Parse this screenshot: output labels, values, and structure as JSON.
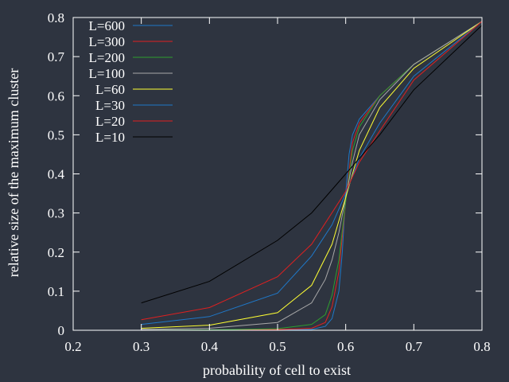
{
  "chart_data": {
    "type": "line",
    "title": "",
    "xlabel": "probability of cell to exist",
    "ylabel": "relative size of the maximum cluster",
    "xlim": [
      0.2,
      0.8
    ],
    "ylim": [
      0,
      0.8
    ],
    "xticks": [
      "0.2",
      "0.3",
      "0.4",
      "0.5",
      "0.6",
      "0.7",
      "0.8"
    ],
    "yticks": [
      "0",
      "0.1",
      "0.2",
      "0.3",
      "0.4",
      "0.5",
      "0.6",
      "0.7",
      "0.8"
    ],
    "grid": false,
    "legend_position": "top-left",
    "background": "#2e3440",
    "axis_color": "#ffffff",
    "series": [
      {
        "name": "L=600",
        "color": "#1f78c8",
        "x": [
          0.3,
          0.4,
          0.5,
          0.55,
          0.57,
          0.58,
          0.59,
          0.595,
          0.6,
          0.605,
          0.61,
          0.62,
          0.65,
          0.7,
          0.8
        ],
        "y": [
          0.0,
          0.0,
          0.0,
          0.002,
          0.01,
          0.03,
          0.1,
          0.2,
          0.35,
          0.45,
          0.5,
          0.54,
          0.6,
          0.68,
          0.79
        ]
      },
      {
        "name": "L=300",
        "color": "#e02020",
        "x": [
          0.3,
          0.4,
          0.5,
          0.55,
          0.57,
          0.58,
          0.59,
          0.6,
          0.61,
          0.62,
          0.65,
          0.7,
          0.8
        ],
        "y": [
          0.0,
          0.0,
          0.002,
          0.005,
          0.02,
          0.06,
          0.15,
          0.33,
          0.48,
          0.53,
          0.6,
          0.68,
          0.79
        ]
      },
      {
        "name": "L=200",
        "color": "#2e9e2e",
        "x": [
          0.3,
          0.4,
          0.5,
          0.55,
          0.57,
          0.58,
          0.59,
          0.6,
          0.61,
          0.62,
          0.65,
          0.7,
          0.8
        ],
        "y": [
          0.0,
          0.001,
          0.004,
          0.015,
          0.04,
          0.09,
          0.18,
          0.33,
          0.46,
          0.52,
          0.6,
          0.68,
          0.79
        ]
      },
      {
        "name": "L=100",
        "color": "#a8a8a8",
        "x": [
          0.3,
          0.4,
          0.5,
          0.55,
          0.57,
          0.58,
          0.59,
          0.6,
          0.61,
          0.62,
          0.65,
          0.7,
          0.8
        ],
        "y": [
          0.002,
          0.005,
          0.02,
          0.07,
          0.13,
          0.18,
          0.25,
          0.34,
          0.43,
          0.5,
          0.59,
          0.68,
          0.79
        ]
      },
      {
        "name": "L=60",
        "color": "#ffff33",
        "x": [
          0.3,
          0.4,
          0.5,
          0.55,
          0.58,
          0.6,
          0.62,
          0.65,
          0.7,
          0.8
        ],
        "y": [
          0.005,
          0.013,
          0.045,
          0.115,
          0.22,
          0.34,
          0.46,
          0.57,
          0.67,
          0.79
        ]
      },
      {
        "name": "L=30",
        "color": "#1f78c8",
        "x": [
          0.3,
          0.4,
          0.5,
          0.55,
          0.58,
          0.6,
          0.62,
          0.65,
          0.7,
          0.8
        ],
        "y": [
          0.015,
          0.035,
          0.095,
          0.19,
          0.27,
          0.35,
          0.44,
          0.53,
          0.65,
          0.79
        ]
      },
      {
        "name": "L=20",
        "color": "#e02020",
        "x": [
          0.3,
          0.4,
          0.5,
          0.55,
          0.6,
          0.62,
          0.65,
          0.7,
          0.8
        ],
        "y": [
          0.027,
          0.058,
          0.137,
          0.22,
          0.355,
          0.43,
          0.51,
          0.64,
          0.79
        ]
      },
      {
        "name": "L=10",
        "color": "#000000",
        "x": [
          0.3,
          0.4,
          0.5,
          0.55,
          0.57,
          0.6,
          0.62,
          0.65,
          0.7,
          0.8
        ],
        "y": [
          0.07,
          0.125,
          0.23,
          0.3,
          0.34,
          0.4,
          0.44,
          0.5,
          0.615,
          0.78
        ]
      }
    ]
  }
}
